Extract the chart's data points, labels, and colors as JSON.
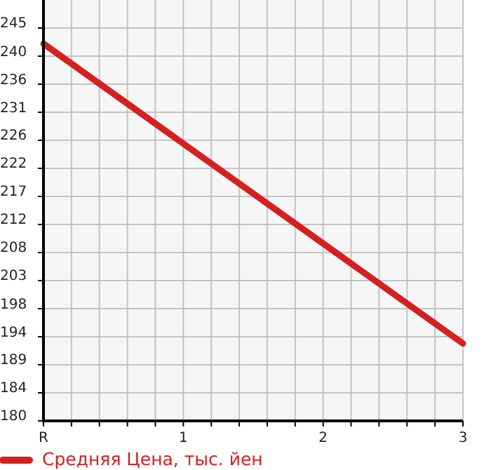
{
  "chart_data": {
    "type": "line",
    "x": [
      0,
      3
    ],
    "series": [
      {
        "name": "Средняя Цена, тыс. йен",
        "color": "#d42020",
        "values": [
          242.4,
          192.5
        ]
      }
    ],
    "xlim": [
      0,
      3
    ],
    "ylim": [
      179.6,
      249.67
    ],
    "xticks": [
      {
        "value": 0,
        "label": "R"
      },
      {
        "value": 0.2,
        "label": null
      },
      {
        "value": 0.4,
        "label": null
      },
      {
        "value": 0.6,
        "label": null
      },
      {
        "value": 0.8,
        "label": null
      },
      1,
      {
        "value": 1.2,
        "label": null
      },
      {
        "value": 1.4,
        "label": null
      },
      {
        "value": 1.6,
        "label": null
      },
      {
        "value": 1.8,
        "label": null
      },
      2,
      {
        "value": 2.2,
        "label": null
      },
      {
        "value": 2.4,
        "label": null
      },
      {
        "value": 2.6,
        "label": null
      },
      {
        "value": 2.8,
        "label": null
      },
      3
    ],
    "yticks": [
      {
        "value": 179.6,
        "label": "180"
      },
      {
        "value": 184.27,
        "label": "184"
      },
      {
        "value": 188.94,
        "label": "189"
      },
      {
        "value": 193.61,
        "label": "194"
      },
      {
        "value": 198.28,
        "label": "198"
      },
      {
        "value": 202.96,
        "label": "203"
      },
      {
        "value": 207.63,
        "label": "208"
      },
      {
        "value": 212.3,
        "label": "212"
      },
      {
        "value": 216.97,
        "label": "217"
      },
      {
        "value": 221.64,
        "label": "222"
      },
      {
        "value": 226.31,
        "label": "226"
      },
      {
        "value": 230.98,
        "label": "231"
      },
      {
        "value": 235.65,
        "label": "236"
      },
      {
        "value": 240.32,
        "label": "240"
      },
      245
    ],
    "grid": true,
    "legend": "bottom left",
    "marker": "none",
    "line_style": "solid"
  }
}
